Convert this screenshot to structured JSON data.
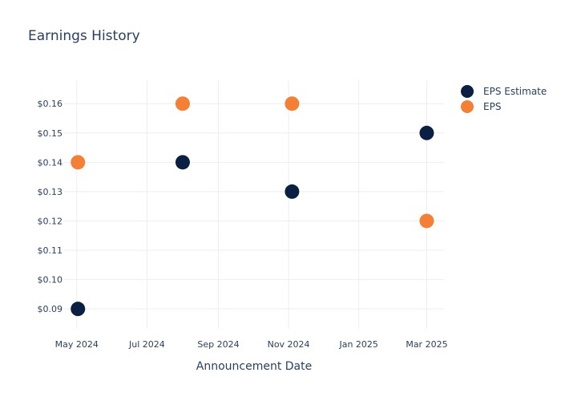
{
  "chart_data": {
    "type": "scatter",
    "title": "Earnings History",
    "xlabel": "Announcement Date",
    "ylabel": "",
    "x_ticks": [
      "May 2024",
      "Jul 2024",
      "Sep 2024",
      "Nov 2024",
      "Jan 2025",
      "Mar 2025"
    ],
    "x_tick_dates": [
      "2024-05-01",
      "2024-07-01",
      "2024-09-01",
      "2024-11-01",
      "2025-01-01",
      "2025-03-01"
    ],
    "xlim": [
      "2024-04-20",
      "2025-03-16"
    ],
    "y_ticks": [
      "$0.09",
      "$0.10",
      "$0.11",
      "$0.12",
      "$0.13",
      "$0.14",
      "$0.15",
      "$0.16"
    ],
    "y_tick_values": [
      0.09,
      0.1,
      0.11,
      0.12,
      0.13,
      0.14,
      0.15,
      0.16
    ],
    "ylim": [
      0.0832,
      0.168
    ],
    "grid": true,
    "legend_position": "top-right",
    "series": [
      {
        "name": "EPS Estimate",
        "color": "#0b1f42",
        "points": [
          {
            "x": "2024-05-02",
            "y": 0.09
          },
          {
            "x": "2024-08-01",
            "y": 0.14
          },
          {
            "x": "2024-11-04",
            "y": 0.13
          },
          {
            "x": "2025-03-01",
            "y": 0.15
          }
        ]
      },
      {
        "name": "EPS",
        "color": "#f47f36",
        "points": [
          {
            "x": "2024-05-02",
            "y": 0.14
          },
          {
            "x": "2024-08-01",
            "y": 0.16
          },
          {
            "x": "2024-11-04",
            "y": 0.16
          },
          {
            "x": "2025-03-01",
            "y": 0.12
          }
        ]
      }
    ]
  }
}
